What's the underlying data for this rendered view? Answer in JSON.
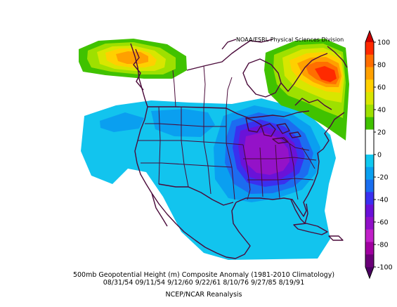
{
  "credit": "NOAA/ESRL Physical Sciences Division",
  "caption": {
    "line1": "500mb Geopotential Height (m) Composite Anomaly (1981-2010 Climatology)",
    "line2": "08/31/54 09/11/54 9/12/60 9/22/61 8/10/76 9/27/85 8/19/91",
    "line3": "NCEP/NCAR Reanalysis"
  },
  "legend": {
    "ticks": [
      "100",
      "80",
      "60",
      "40",
      "20",
      "0",
      "-20",
      "-40",
      "-60",
      "-80",
      "-100"
    ],
    "colors": [
      "#ff2a00",
      "#ff6e00",
      "#ffa000",
      "#ffd000",
      "#d8e600",
      "#9ee000",
      "#40c200",
      "#ffffff",
      "#ffffff",
      "#10c8f0",
      "#0aa0f0",
      "#1a6ef0",
      "#3a30f0",
      "#6a10d8",
      "#9010c8",
      "#c020c8",
      "#a000a0",
      "#6a0078"
    ]
  }
}
